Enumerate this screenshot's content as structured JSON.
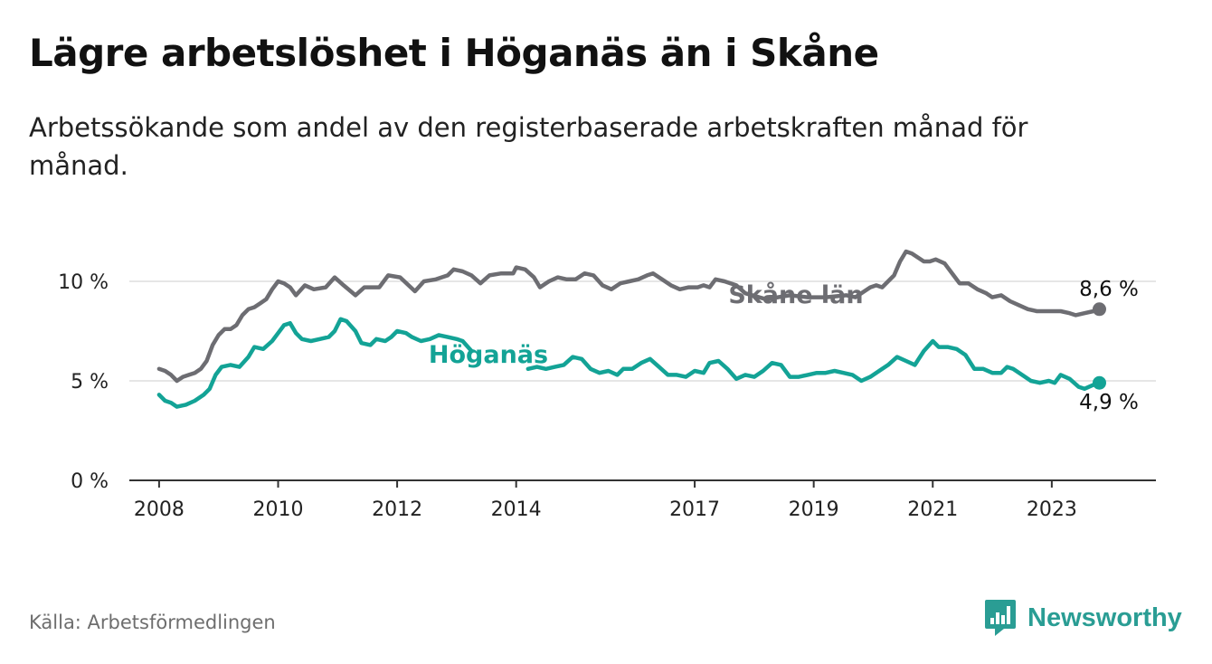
{
  "title": "Lägre arbetslöshet i Höganäs än i Skåne",
  "subtitle": "Arbetssökande som andel av den registerbaserade arbetskraften månad för månad.",
  "source": "Källa: Arbetsförmedlingen",
  "brand": {
    "name": "Newsworthy",
    "icon": "newsworthy-logo-icon"
  },
  "colors": {
    "skane": "#6d6d72",
    "hoganas": "#13a396",
    "axis": "#333333",
    "grid": "#dddddd",
    "brand": "#2a9d94"
  },
  "chart_data": {
    "type": "line",
    "title": "Lägre arbetslöshet i Höganäs än i Skåne",
    "xlabel": "",
    "ylabel": "",
    "xlim": [
      2007.5,
      2024.75
    ],
    "ylim": [
      0,
      10
    ],
    "y_ticks": [
      {
        "value": 0,
        "label": "0 %"
      },
      {
        "value": 5,
        "label": "5 %"
      },
      {
        "value": 10,
        "label": "10 %"
      }
    ],
    "x_ticks": [
      {
        "value": 2008,
        "label": "2008"
      },
      {
        "value": 2010,
        "label": "2010"
      },
      {
        "value": 2012,
        "label": "2012"
      },
      {
        "value": 2014,
        "label": "2014"
      },
      {
        "value": 2017,
        "label": "2017"
      },
      {
        "value": 2019,
        "label": "2019"
      },
      {
        "value": 2021,
        "label": "2021"
      },
      {
        "value": 2023,
        "label": "2023"
      }
    ],
    "series": [
      {
        "name": "Skåne län",
        "end_label": "8,6 %",
        "points": [
          [
            2008.0,
            5.6
          ],
          [
            2008.1,
            5.5
          ],
          [
            2008.2,
            5.3
          ],
          [
            2008.3,
            5.0
          ],
          [
            2008.4,
            5.2
          ],
          [
            2008.5,
            5.3
          ],
          [
            2008.6,
            5.4
          ],
          [
            2008.7,
            5.6
          ],
          [
            2008.8,
            6.0
          ],
          [
            2008.9,
            6.8
          ],
          [
            2009.0,
            7.3
          ],
          [
            2009.1,
            7.6
          ],
          [
            2009.2,
            7.6
          ],
          [
            2009.3,
            7.8
          ],
          [
            2009.4,
            8.3
          ],
          [
            2009.5,
            8.6
          ],
          [
            2009.6,
            8.7
          ],
          [
            2009.7,
            8.9
          ],
          [
            2009.8,
            9.1
          ],
          [
            2009.9,
            9.6
          ],
          [
            2010.0,
            10.0
          ],
          [
            2010.1,
            9.9
          ],
          [
            2010.2,
            9.7
          ],
          [
            2010.3,
            9.3
          ],
          [
            2010.45,
            9.8
          ],
          [
            2010.6,
            9.6
          ],
          [
            2010.8,
            9.7
          ],
          [
            2010.95,
            10.2
          ],
          [
            2011.1,
            9.8
          ],
          [
            2011.3,
            9.3
          ],
          [
            2011.45,
            9.7
          ],
          [
            2011.7,
            9.7
          ],
          [
            2011.85,
            10.3
          ],
          [
            2012.05,
            10.2
          ],
          [
            2012.3,
            9.5
          ],
          [
            2012.45,
            10.0
          ],
          [
            2012.65,
            10.1
          ],
          [
            2012.85,
            10.3
          ],
          [
            2012.95,
            10.6
          ],
          [
            2013.1,
            10.5
          ],
          [
            2013.25,
            10.3
          ],
          [
            2013.4,
            9.9
          ],
          [
            2013.55,
            10.3
          ],
          [
            2013.75,
            10.4
          ],
          [
            2013.95,
            10.4
          ],
          [
            2014.0,
            10.7
          ],
          [
            2014.15,
            10.6
          ],
          [
            2014.3,
            10.2
          ],
          [
            2014.4,
            9.7
          ],
          [
            2014.55,
            10.0
          ],
          [
            2014.7,
            10.2
          ],
          [
            2014.85,
            10.1
          ],
          [
            2015.0,
            10.1
          ],
          [
            2015.15,
            10.4
          ],
          [
            2015.3,
            10.3
          ],
          [
            2015.45,
            9.8
          ],
          [
            2015.6,
            9.6
          ],
          [
            2015.75,
            9.9
          ],
          [
            2015.9,
            10.0
          ],
          [
            2016.05,
            10.1
          ],
          [
            2016.2,
            10.3
          ],
          [
            2016.3,
            10.4
          ],
          [
            2016.45,
            10.1
          ],
          [
            2016.6,
            9.8
          ],
          [
            2016.75,
            9.6
          ],
          [
            2016.9,
            9.7
          ],
          [
            2017.05,
            9.7
          ],
          [
            2017.15,
            9.8
          ],
          [
            2017.25,
            9.7
          ],
          [
            2017.35,
            10.1
          ],
          [
            2017.5,
            10.0
          ],
          [
            2017.7,
            9.8
          ],
          [
            2017.85,
            9.4
          ],
          [
            2018.2,
            9.1
          ],
          [
            2018.6,
            9.3
          ],
          [
            2018.9,
            9.2
          ],
          [
            2019.2,
            9.2
          ],
          [
            2019.55,
            9.3
          ],
          [
            2019.7,
            9.2
          ],
          [
            2019.85,
            9.5
          ],
          [
            2019.95,
            9.7
          ],
          [
            2020.05,
            9.8
          ],
          [
            2020.15,
            9.7
          ],
          [
            2020.25,
            10.0
          ],
          [
            2020.35,
            10.3
          ],
          [
            2020.45,
            11.0
          ],
          [
            2020.55,
            11.5
          ],
          [
            2020.65,
            11.4
          ],
          [
            2020.75,
            11.2
          ],
          [
            2020.85,
            11.0
          ],
          [
            2020.95,
            11.0
          ],
          [
            2021.05,
            11.1
          ],
          [
            2021.2,
            10.9
          ],
          [
            2021.35,
            10.3
          ],
          [
            2021.45,
            9.9
          ],
          [
            2021.6,
            9.9
          ],
          [
            2021.75,
            9.6
          ],
          [
            2021.9,
            9.4
          ],
          [
            2022.0,
            9.2
          ],
          [
            2022.15,
            9.3
          ],
          [
            2022.3,
            9.0
          ],
          [
            2022.45,
            8.8
          ],
          [
            2022.6,
            8.6
          ],
          [
            2022.75,
            8.5
          ],
          [
            2022.9,
            8.5
          ],
          [
            2023.0,
            8.5
          ],
          [
            2023.15,
            8.5
          ],
          [
            2023.3,
            8.4
          ],
          [
            2023.4,
            8.3
          ],
          [
            2023.55,
            8.4
          ],
          [
            2023.7,
            8.5
          ],
          [
            2023.8,
            8.6
          ]
        ],
        "label_gap": [
          2017.95,
          2019.55
        ]
      },
      {
        "name": "Höganäs",
        "end_label": "4,9 %",
        "points": [
          [
            2008.0,
            4.3
          ],
          [
            2008.1,
            4.0
          ],
          [
            2008.2,
            3.9
          ],
          [
            2008.3,
            3.7
          ],
          [
            2008.45,
            3.8
          ],
          [
            2008.6,
            4.0
          ],
          [
            2008.75,
            4.3
          ],
          [
            2008.85,
            4.6
          ],
          [
            2008.95,
            5.3
          ],
          [
            2009.05,
            5.7
          ],
          [
            2009.2,
            5.8
          ],
          [
            2009.35,
            5.7
          ],
          [
            2009.5,
            6.2
          ],
          [
            2009.6,
            6.7
          ],
          [
            2009.75,
            6.6
          ],
          [
            2009.9,
            7.0
          ],
          [
            2010.0,
            7.4
          ],
          [
            2010.1,
            7.8
          ],
          [
            2010.2,
            7.9
          ],
          [
            2010.3,
            7.4
          ],
          [
            2010.4,
            7.1
          ],
          [
            2010.55,
            7.0
          ],
          [
            2010.7,
            7.1
          ],
          [
            2010.85,
            7.2
          ],
          [
            2010.95,
            7.5
          ],
          [
            2011.05,
            8.1
          ],
          [
            2011.15,
            8.0
          ],
          [
            2011.3,
            7.5
          ],
          [
            2011.4,
            6.9
          ],
          [
            2011.55,
            6.8
          ],
          [
            2011.65,
            7.1
          ],
          [
            2011.8,
            7.0
          ],
          [
            2011.9,
            7.2
          ],
          [
            2012.0,
            7.5
          ],
          [
            2012.15,
            7.4
          ],
          [
            2012.25,
            7.2
          ],
          [
            2012.4,
            7.0
          ],
          [
            2012.55,
            7.1
          ],
          [
            2012.7,
            7.3
          ],
          [
            2012.85,
            7.2
          ],
          [
            2013.0,
            7.1
          ],
          [
            2013.1,
            7.0
          ],
          [
            2013.25,
            6.5
          ],
          [
            2014.2,
            5.6
          ],
          [
            2014.35,
            5.7
          ],
          [
            2014.5,
            5.6
          ],
          [
            2014.65,
            5.7
          ],
          [
            2014.8,
            5.8
          ],
          [
            2014.95,
            6.2
          ],
          [
            2015.1,
            6.1
          ],
          [
            2015.25,
            5.6
          ],
          [
            2015.4,
            5.4
          ],
          [
            2015.55,
            5.5
          ],
          [
            2015.7,
            5.3
          ],
          [
            2015.8,
            5.6
          ],
          [
            2015.95,
            5.6
          ],
          [
            2016.1,
            5.9
          ],
          [
            2016.25,
            6.1
          ],
          [
            2016.4,
            5.7
          ],
          [
            2016.55,
            5.3
          ],
          [
            2016.7,
            5.3
          ],
          [
            2016.85,
            5.2
          ],
          [
            2017.0,
            5.5
          ],
          [
            2017.15,
            5.4
          ],
          [
            2017.25,
            5.9
          ],
          [
            2017.4,
            6.0
          ],
          [
            2017.55,
            5.6
          ],
          [
            2017.7,
            5.1
          ],
          [
            2017.85,
            5.3
          ],
          [
            2018.0,
            5.2
          ],
          [
            2018.15,
            5.5
          ],
          [
            2018.3,
            5.9
          ],
          [
            2018.45,
            5.8
          ],
          [
            2018.6,
            5.2
          ],
          [
            2018.75,
            5.2
          ],
          [
            2018.9,
            5.3
          ],
          [
            2019.05,
            5.4
          ],
          [
            2019.2,
            5.4
          ],
          [
            2019.35,
            5.5
          ],
          [
            2019.5,
            5.4
          ],
          [
            2019.65,
            5.3
          ],
          [
            2019.8,
            5.0
          ],
          [
            2019.95,
            5.2
          ],
          [
            2020.1,
            5.5
          ],
          [
            2020.25,
            5.8
          ],
          [
            2020.4,
            6.2
          ],
          [
            2020.55,
            6.0
          ],
          [
            2020.7,
            5.8
          ],
          [
            2020.85,
            6.5
          ],
          [
            2021.0,
            7.0
          ],
          [
            2021.1,
            6.7
          ],
          [
            2021.25,
            6.7
          ],
          [
            2021.4,
            6.6
          ],
          [
            2021.55,
            6.3
          ],
          [
            2021.7,
            5.6
          ],
          [
            2021.85,
            5.6
          ],
          [
            2022.0,
            5.4
          ],
          [
            2022.15,
            5.4
          ],
          [
            2022.25,
            5.7
          ],
          [
            2022.35,
            5.6
          ],
          [
            2022.5,
            5.3
          ],
          [
            2022.65,
            5.0
          ],
          [
            2022.8,
            4.9
          ],
          [
            2022.95,
            5.0
          ],
          [
            2023.05,
            4.9
          ],
          [
            2023.15,
            5.3
          ],
          [
            2023.3,
            5.1
          ],
          [
            2023.45,
            4.7
          ],
          [
            2023.55,
            4.6
          ],
          [
            2023.7,
            4.8
          ],
          [
            2023.8,
            4.9
          ]
        ],
        "label_gap": [
          2013.3,
          2014.15
        ]
      }
    ],
    "annotations": [
      {
        "text": "Skåne län",
        "series": "Skåne län"
      },
      {
        "text": "Höganäs",
        "series": "Höganäs"
      }
    ],
    "grid": true,
    "legend": "inline"
  }
}
